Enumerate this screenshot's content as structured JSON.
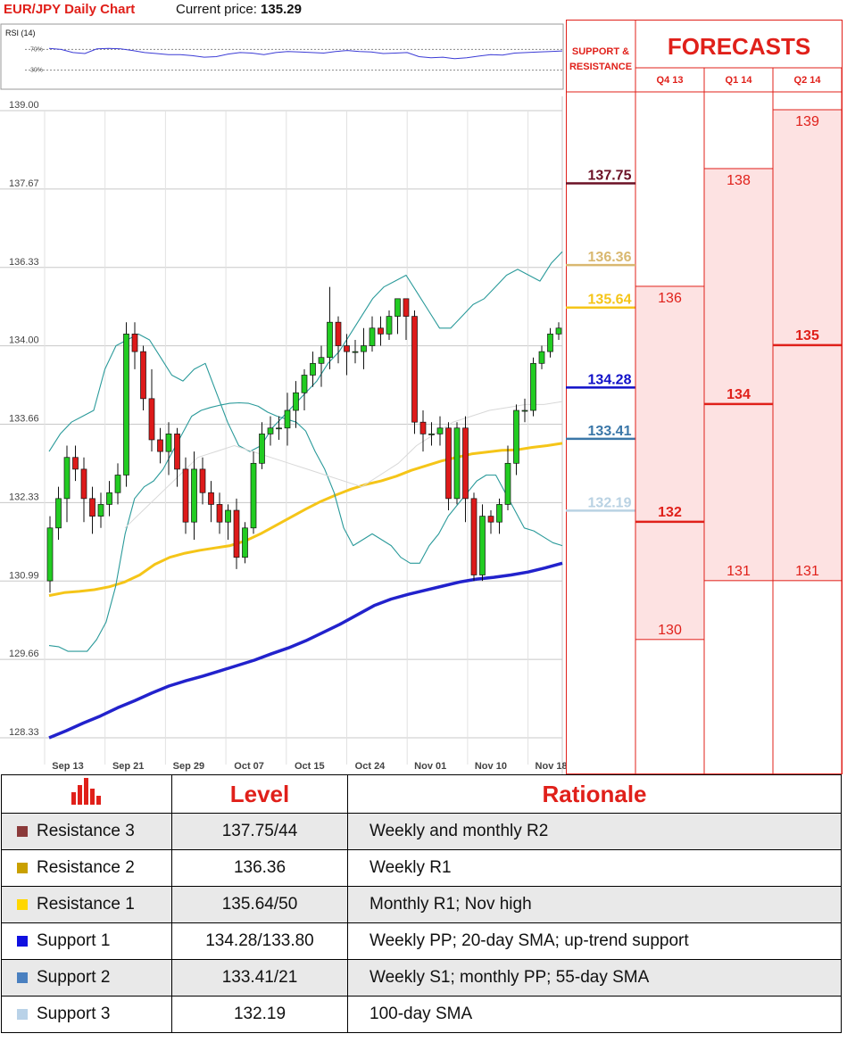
{
  "title": {
    "main": "EUR/JPY Daily Chart",
    "price_label": "Current price:",
    "price_value": "135.29"
  },
  "chart_data": [
    {
      "type": "line",
      "title": "RSI (14)",
      "y_ticks": [
        "70%",
        "30%"
      ],
      "ylim": [
        0,
        100
      ],
      "series": [
        {
          "values": [
            72,
            70,
            64,
            62,
            71,
            72,
            71,
            68,
            64,
            62,
            60,
            60,
            58,
            55,
            56,
            61,
            64,
            63,
            60,
            64,
            66,
            65,
            64,
            63,
            66,
            68,
            66,
            65,
            62,
            63,
            64,
            56,
            54,
            55,
            52,
            54,
            57,
            60,
            59,
            63,
            64,
            65,
            66,
            67
          ]
        }
      ],
      "levels": [
        70,
        30
      ],
      "colors": {
        "line": "#3b3bd6",
        "levels": "#888888"
      }
    },
    {
      "type": "candlestick",
      "ylim": [
        128.33,
        139.0
      ],
      "y_ticks": [
        "139.00",
        "137.67",
        "136.33",
        "134.00",
        "133.66",
        "132.33",
        "130.99",
        "129.66",
        "128.33"
      ],
      "x_ticks": [
        "Sep 13",
        "Sep 21",
        "Sep 29",
        "Oct 07",
        "Oct 15",
        "Oct 24",
        "Nov 01",
        "Nov 10",
        "Nov 18"
      ],
      "candles": [
        [
          131.0,
          131.9,
          130.8,
          132.1
        ],
        [
          131.9,
          132.4,
          131.7,
          132.6
        ],
        [
          132.4,
          133.1,
          132.0,
          133.3
        ],
        [
          133.1,
          132.9,
          132.7,
          133.3
        ],
        [
          132.9,
          132.4,
          132.0,
          133.1
        ],
        [
          132.4,
          132.1,
          131.8,
          132.6
        ],
        [
          132.1,
          132.3,
          131.9,
          132.5
        ],
        [
          132.3,
          132.5,
          132.1,
          132.7
        ],
        [
          132.5,
          132.8,
          132.3,
          133.0
        ],
        [
          132.8,
          135.2,
          132.6,
          135.4
        ],
        [
          135.2,
          134.9,
          134.6,
          135.4
        ],
        [
          134.9,
          134.1,
          133.9,
          135.0
        ],
        [
          134.1,
          133.4,
          133.2,
          134.6
        ],
        [
          133.4,
          133.2,
          133.0,
          133.6
        ],
        [
          133.2,
          133.5,
          132.8,
          133.7
        ],
        [
          133.5,
          132.9,
          132.6,
          133.6
        ],
        [
          132.9,
          132.0,
          131.8,
          133.1
        ],
        [
          132.0,
          132.9,
          131.7,
          133.2
        ],
        [
          132.9,
          132.5,
          132.3,
          133.1
        ],
        [
          132.5,
          132.3,
          132.0,
          132.7
        ],
        [
          132.3,
          132.0,
          131.8,
          132.5
        ],
        [
          132.0,
          132.2,
          131.7,
          132.3
        ],
        [
          132.2,
          131.4,
          131.2,
          132.4
        ],
        [
          131.4,
          131.9,
          131.3,
          132.0
        ],
        [
          131.9,
          133.0,
          131.8,
          133.2
        ],
        [
          133.0,
          133.5,
          132.9,
          133.7
        ],
        [
          133.5,
          133.6,
          133.3,
          133.8
        ],
        [
          133.6,
          133.6,
          133.4,
          133.8
        ],
        [
          133.6,
          133.9,
          133.3,
          134.2
        ],
        [
          133.9,
          134.2,
          133.6,
          134.4
        ],
        [
          134.2,
          134.5,
          133.9,
          134.6
        ],
        [
          134.5,
          134.7,
          134.3,
          134.9
        ],
        [
          134.7,
          134.8,
          134.3,
          135.0
        ],
        [
          134.8,
          135.4,
          134.6,
          136.0
        ],
        [
          135.4,
          135.0,
          134.7,
          135.5
        ],
        [
          135.0,
          134.9,
          134.5,
          135.2
        ],
        [
          134.9,
          134.9,
          134.7,
          135.1
        ],
        [
          134.9,
          135.0,
          134.6,
          135.3
        ],
        [
          135.0,
          135.3,
          134.9,
          135.5
        ],
        [
          135.3,
          135.2,
          135.0,
          135.5
        ],
        [
          135.2,
          135.5,
          135.1,
          135.6
        ],
        [
          135.5,
          135.8,
          135.2,
          135.8
        ],
        [
          135.8,
          135.5,
          135.1,
          135.8
        ],
        [
          135.5,
          133.7,
          133.5,
          135.6
        ],
        [
          133.7,
          133.5,
          133.2,
          133.9
        ],
        [
          133.5,
          133.5,
          133.3,
          133.7
        ],
        [
          133.5,
          133.6,
          133.3,
          133.8
        ],
        [
          133.6,
          132.4,
          132.2,
          133.7
        ],
        [
          132.4,
          133.6,
          132.3,
          133.7
        ],
        [
          133.6,
          132.4,
          132.0,
          133.8
        ],
        [
          132.4,
          131.1,
          131.0,
          132.5
        ],
        [
          131.1,
          132.1,
          131.0,
          132.3
        ],
        [
          132.1,
          132.0,
          131.8,
          132.2
        ],
        [
          132.0,
          132.3,
          131.8,
          132.4
        ],
        [
          132.3,
          133.0,
          132.2,
          133.3
        ],
        [
          133.0,
          133.9,
          132.8,
          134.0
        ],
        [
          133.9,
          133.9,
          133.7,
          134.1
        ],
        [
          133.9,
          134.7,
          133.8,
          134.8
        ],
        [
          134.7,
          134.9,
          134.6,
          135.0
        ],
        [
          134.9,
          135.2,
          134.8,
          135.3
        ],
        [
          135.2,
          135.3,
          135.1,
          135.4
        ]
      ],
      "series": [
        {
          "values": [
            130.75,
            130.8,
            130.82,
            130.85,
            130.9,
            130.98,
            131.1,
            131.28,
            131.4,
            131.47,
            131.52,
            131.56,
            131.6,
            131.68,
            131.8,
            131.94,
            132.08,
            132.22,
            132.35,
            132.46,
            132.56,
            132.64,
            132.7,
            132.78,
            132.88,
            132.96,
            133.04,
            133.1,
            133.16,
            133.19,
            133.22,
            133.23,
            133.27,
            133.3,
            133.34
          ]
        },
        {
          "values": [
            128.33,
            128.45,
            128.58,
            128.7,
            128.84,
            128.96,
            129.09,
            129.21,
            129.3,
            129.38,
            129.47,
            129.56,
            129.65,
            129.76,
            129.86,
            129.98,
            130.12,
            130.26,
            130.42,
            130.58,
            130.69,
            130.77,
            130.84,
            130.91,
            130.98,
            131.03,
            131.06,
            131.1,
            131.15,
            131.22,
            131.3
          ]
        },
        {
          "values": [
            129.9,
            129.88,
            129.8,
            129.8,
            129.8,
            130.0,
            130.3,
            130.9,
            131.8,
            132.4,
            132.6,
            132.7,
            132.9,
            133.2,
            133.5,
            133.8,
            133.9,
            133.95,
            133.99,
            134.02,
            134.03,
            134.02,
            133.97,
            133.87,
            133.8,
            133.75,
            133.7,
            133.55,
            133.2,
            132.9,
            132.5,
            131.9,
            131.6,
            131.7,
            131.8,
            131.7,
            131.6,
            131.4,
            131.3,
            131.3,
            131.6,
            131.8,
            132.1,
            132.3,
            132.5,
            132.7,
            132.8,
            132.8,
            132.5,
            132.2,
            131.9,
            131.85,
            131.75,
            131.65,
            131.6
          ]
        },
        {
          "values": [
            133.2,
            133.5,
            133.7,
            133.8,
            133.9,
            134.6,
            135.0,
            135.1,
            135.2,
            135.1,
            134.8,
            134.5,
            134.4,
            134.6,
            134.7,
            134.2,
            133.7,
            133.3,
            133.2,
            133.3,
            133.6,
            133.8,
            134.0,
            134.2,
            134.4,
            134.7,
            134.9,
            135.2,
            135.5,
            135.8,
            136.0,
            136.1,
            136.2,
            135.9,
            135.6,
            135.3,
            135.3,
            135.5,
            135.7,
            135.8,
            136.0,
            136.2,
            136.3,
            136.2,
            136.1,
            136.4,
            136.6
          ]
        },
        {
          "values": [
            131.9,
            132.2,
            132.5,
            132.8,
            133.1,
            133.2,
            133.3,
            133.2,
            133.1,
            133.0,
            132.9,
            132.8,
            132.7,
            132.6,
            132.8,
            133.0,
            133.3,
            133.5,
            133.7,
            133.8,
            133.9,
            133.95,
            134.0,
            134.0,
            134.05
          ]
        }
      ],
      "colors": {
        "up": "#22cc22",
        "down": "#dd1a1a",
        "sma_100": "#f5c518",
        "sma_200": "#2222cc",
        "bollinger": "#2a9a9a",
        "sma_20": "#d8d8d8",
        "grid": "#c8c8c8"
      }
    },
    {
      "type": "bar",
      "title": "FORECASTS",
      "left_header": "SUPPORT & RESISTANCE",
      "ylim": [
        128.33,
        139.0
      ],
      "levels": [
        {
          "label": "137.75",
          "value": 137.75,
          "color": "#6b1025"
        },
        {
          "label": "136.36",
          "value": 136.36,
          "color": "#d9b870"
        },
        {
          "label": "135.64",
          "value": 135.64,
          "color": "#f5c518"
        },
        {
          "label": "134.28",
          "value": 134.28,
          "color": "#1010c8"
        },
        {
          "label": "133.41",
          "value": 133.41,
          "color": "#3b77a8"
        },
        {
          "label": "132.19",
          "value": 132.19,
          "color": "#b9d2e3"
        }
      ],
      "categories": [
        "Q4 13",
        "Q1 14",
        "Q2 14"
      ],
      "columns": [
        {
          "high": 136,
          "high_label": "136",
          "low": 130,
          "low_label": "130",
          "mid": 132,
          "mid_label": "132"
        },
        {
          "high": 138,
          "high_label": "138",
          "low": 131,
          "low_label": "131",
          "mid": 134,
          "mid_label": "134"
        },
        {
          "high": 139,
          "high_label": "139",
          "low": 131,
          "low_label": "131",
          "mid": 135,
          "mid_label": "135"
        }
      ],
      "colors": {
        "border": "#e0201a",
        "fill": "#fde2e2",
        "text": "#e0201a"
      }
    }
  ],
  "table": {
    "headers": {
      "icon": "bar-chart-icon",
      "level": "Level",
      "rationale": "Rationale"
    },
    "rows": [
      {
        "name": "Resistance 3",
        "level": "137.75/44",
        "rationale": "Weekly and monthly R2",
        "color": "#8b3a3a"
      },
      {
        "name": "Resistance 2",
        "level": "136.36",
        "rationale": "Weekly R1",
        "color": "#c9a000"
      },
      {
        "name": "Resistance 1",
        "level": "135.64/50",
        "rationale": "Monthly R1; Nov high",
        "color": "#ffd700"
      },
      {
        "name": "Support 1",
        "level": "134.28/133.80",
        "rationale": "Weekly PP; 20-day SMA; up-trend support",
        "color": "#1010e0"
      },
      {
        "name": "Support 2",
        "level": "133.41/21",
        "rationale": "Weekly S1; monthly PP; 55-day SMA",
        "color": "#4a80c0"
      },
      {
        "name": "Support 3",
        "level": "132.19",
        "rationale": "100-day SMA",
        "color": "#b9d2e8"
      }
    ]
  }
}
